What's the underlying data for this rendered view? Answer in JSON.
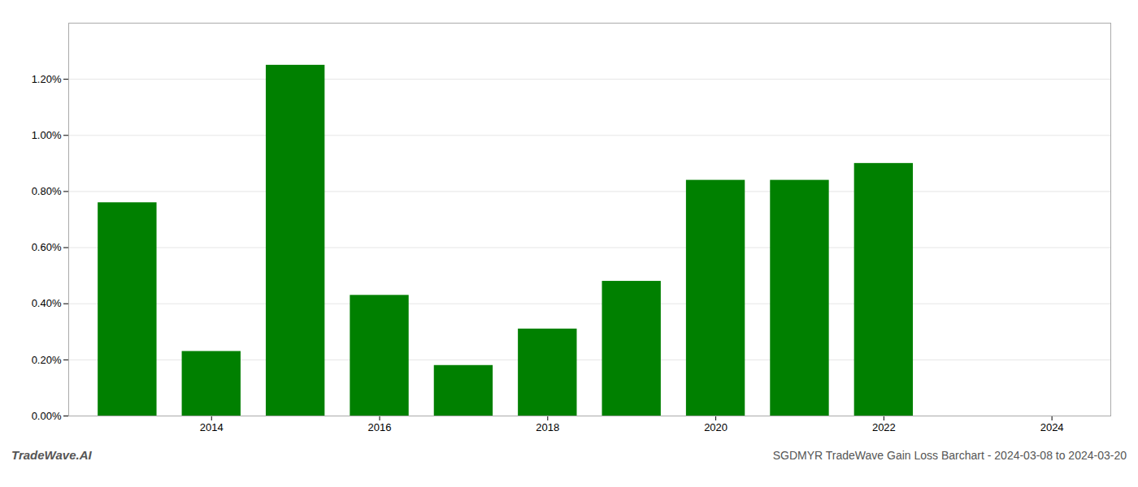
{
  "chart_data": {
    "type": "bar",
    "title": "SGDMYR TradeWave Gain Loss Barchart - 2024-03-08 to 2024-03-20",
    "annotations": [
      "TradeWave.AI"
    ],
    "x": [
      2013,
      2014,
      2015,
      2016,
      2017,
      2018,
      2019,
      2020,
      2021,
      2022
    ],
    "values": [
      0.0076,
      0.0023,
      0.0125,
      0.0043,
      0.0018,
      0.0031,
      0.0048,
      0.0084,
      0.0084,
      0.009
    ],
    "color": "#008000",
    "xlim": [
      2012.3,
      2024.7
    ],
    "ylim": [
      0,
      0.014
    ],
    "xticks": [
      2014,
      2016,
      2018,
      2020,
      2022,
      2024
    ],
    "yticks": [
      {
        "value": 0.0,
        "label": "0.00%"
      },
      {
        "value": 0.002,
        "label": "0.20%"
      },
      {
        "value": 0.004,
        "label": "0.40%"
      },
      {
        "value": 0.006,
        "label": "0.60%"
      },
      {
        "value": 0.008,
        "label": "0.80%"
      },
      {
        "value": 0.01,
        "label": "1.00%"
      },
      {
        "value": 0.012,
        "label": "1.20%"
      }
    ],
    "grid": true
  }
}
